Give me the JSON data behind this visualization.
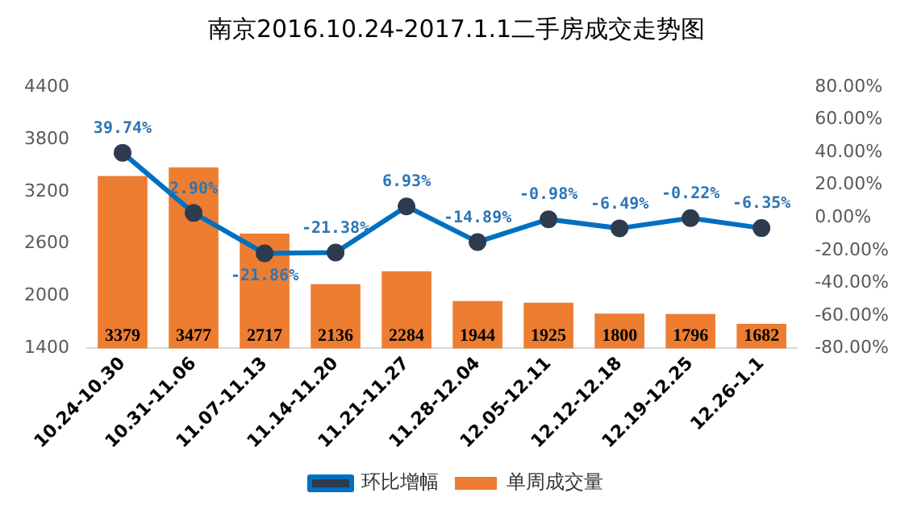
{
  "chart_data": {
    "type": "bar",
    "title": "南京2016.10.24-2017.1.1二手房成交走势图",
    "categories": [
      "10.24-10.30",
      "10.31-11.06",
      "11.07-11.13",
      "11.14-11.20",
      "11.21-11.27",
      "11.28-12.04",
      "12.05-12.11",
      "12.12-12.18",
      "12.19-12.25",
      "12.26-1.1"
    ],
    "series": [
      {
        "name": "单周成交量",
        "color": "#ed7d31",
        "values": [
          3379,
          3477,
          2717,
          2136,
          2284,
          1944,
          1925,
          1800,
          1796,
          1682
        ],
        "value_labels": [
          "3379",
          "3477",
          "2717",
          "2136",
          "2284",
          "1944",
          "1925",
          "1800",
          "1796",
          "1682"
        ]
      },
      {
        "name": "环比增幅",
        "type": "line",
        "axis": "y2",
        "color": "#0070c0",
        "values": [
          39.74,
          2.9,
          -21.86,
          -21.38,
          6.93,
          -14.89,
          -0.98,
          -6.49,
          -0.22,
          -6.35
        ],
        "value_labels": [
          "39.74%",
          "2.90%",
          "-21.86%",
          "-21.38%",
          "6.93%",
          "-14.89%",
          "-0.98%",
          "-6.49%",
          "-0.22%",
          "-6.35%"
        ]
      }
    ],
    "ylim": [
      1400,
      4400
    ],
    "yticks": [
      1400,
      2000,
      2600,
      3200,
      3800,
      4400
    ],
    "y2lim": [
      -80,
      80
    ],
    "y2ticks": [
      {
        "value": -80,
        "label": "-80.00%"
      },
      {
        "value": -60,
        "label": "-60.00%"
      },
      {
        "value": -40,
        "label": "-40.00%"
      },
      {
        "value": -20,
        "label": "-20.00%"
      },
      {
        "value": 0,
        "label": "0.00%"
      },
      {
        "value": 20,
        "label": "20.00%"
      },
      {
        "value": 40,
        "label": "40.00%"
      },
      {
        "value": 60,
        "label": "60.00%"
      },
      {
        "value": 80,
        "label": "80.00%"
      }
    ],
    "grid": false,
    "legend": "bottom",
    "marker": "circle",
    "line_style": "solid"
  }
}
